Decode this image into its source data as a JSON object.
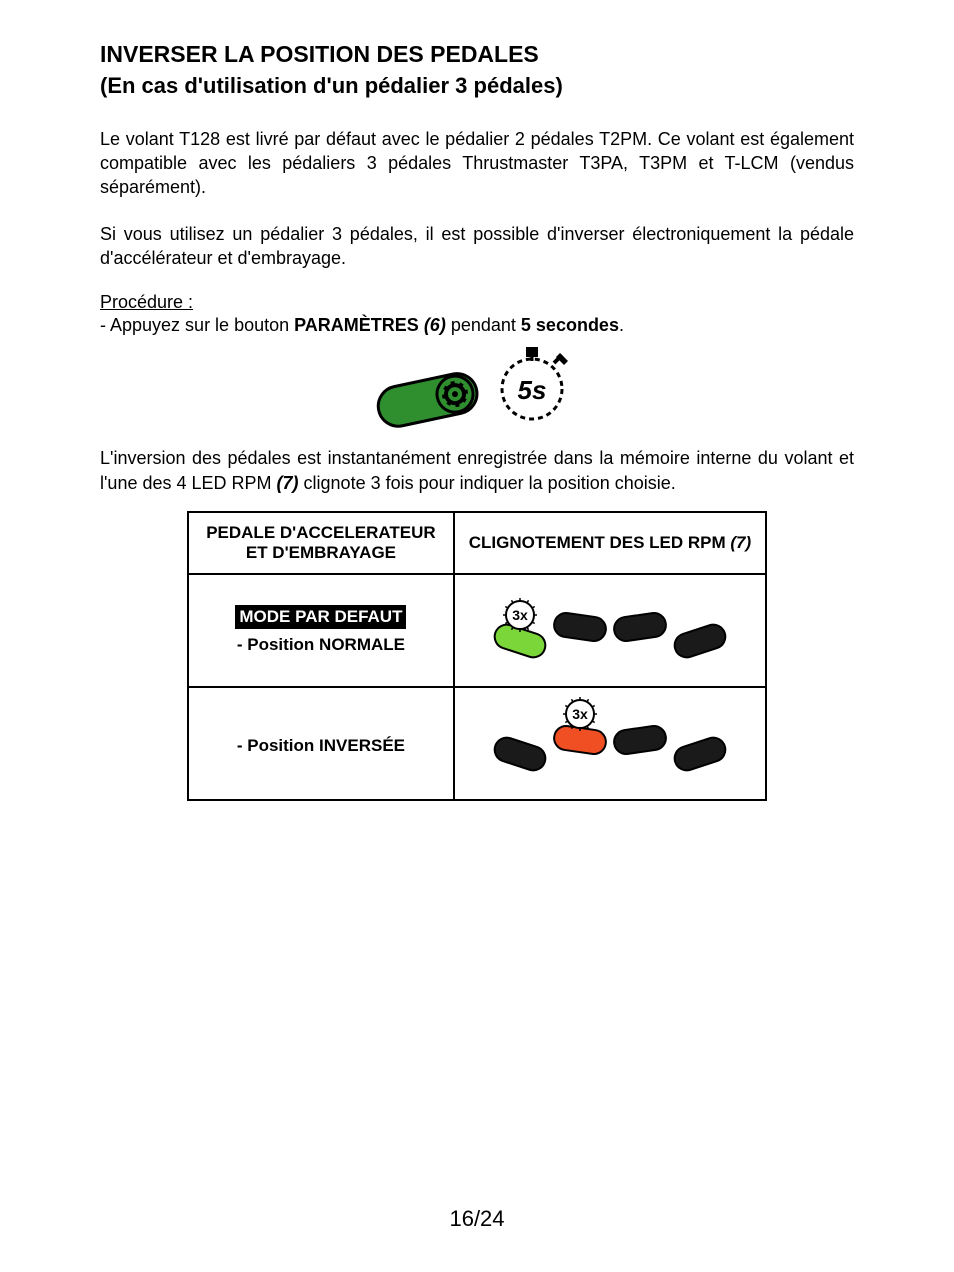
{
  "title": "INVERSER LA POSITION DES PEDALES",
  "subtitle": "(En cas d'utilisation d'un pédalier 3 pédales)",
  "paragraph1": "Le volant T128 est livré par défaut avec le pédalier 2 pédales T2PM. Ce volant est également compatible avec les pédaliers 3 pédales Thrustmaster T3PA, T3PM et T-LCM (vendus séparément).",
  "paragraph2": "Si vous utilisez un pédalier 3 pédales, il est possible d'inverser électroniquement la pédale d'accélérateur et d'embrayage.",
  "procedure_label": "Procédure :",
  "procedure_step_prefix": "- Appuyez sur le bouton ",
  "procedure_step_bold": "PARAMÈTRES",
  "procedure_step_ref": " (6) ",
  "procedure_step_mid": "pendant ",
  "procedure_step_bold2": "5 secondes",
  "procedure_step_suffix": ".",
  "paragraph3_a": "L'inversion des pédales est instantanément enregistrée dans la mémoire interne du volant et l'une des 4 LED RPM ",
  "paragraph3_ref": "(7)",
  "paragraph3_b": " clignote 3 fois pour indiquer la position choisie.",
  "table": {
    "header_left_line1": "PEDALE D'ACCELERATEUR",
    "header_left_line2": "ET D'EMBRAYAGE",
    "header_right": "CLIGNOTEMENT DES LED RPM ",
    "header_right_ref": "(7)",
    "row1": {
      "mode_default": "MODE PAR DEFAUT",
      "position": "- Position NORMALE",
      "blink_label": "3x",
      "lit_index": 0,
      "lit_color": "#7bd63a"
    },
    "row2": {
      "position": "- Position INVERSÉE",
      "blink_label": "3x",
      "lit_index": 1,
      "lit_color": "#f04e23"
    }
  },
  "button_diagram": {
    "body_color": "#2f8f2f",
    "gear_color": "#000000",
    "timer_label": "5s",
    "timer_stroke": "#000000"
  },
  "led_arc": {
    "dark_color": "#1a1a1a",
    "outline": "#000000"
  },
  "page_number": "16/24"
}
